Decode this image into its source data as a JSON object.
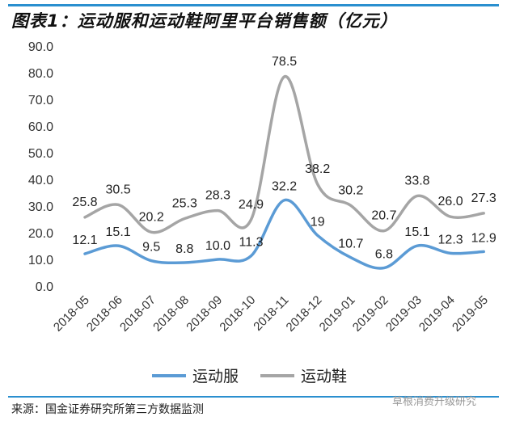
{
  "title": "图表1：运动服和运动鞋阿里平台销售额（亿元）",
  "source": "来源：国金证券研究所第三方数据监测",
  "watermark": "草根消费升级研究",
  "chart_data": {
    "type": "line",
    "title": "",
    "xlabel": "",
    "ylabel": "",
    "ylim": [
      0,
      90
    ],
    "yticks": [
      "0.0",
      "10.0",
      "20.0",
      "30.0",
      "40.0",
      "50.0",
      "60.0",
      "70.0",
      "80.0",
      "90.0"
    ],
    "grid": false,
    "smooth": true,
    "legend": "bottom",
    "categories": [
      "2018-05",
      "2018-06",
      "2018-07",
      "2018-08",
      "2018-09",
      "2018-10",
      "2018-11",
      "2018-12",
      "2019-01",
      "2019-02",
      "2019-03",
      "2019-04",
      "2019-05"
    ],
    "series": [
      {
        "name": "运动服",
        "color": "#5b9bd5",
        "values": [
          12.1,
          15.1,
          9.5,
          8.8,
          10.0,
          11.3,
          32.2,
          19,
          10.7,
          6.8,
          15.1,
          12.3,
          12.9
        ],
        "labels": [
          "12.1",
          "15.1",
          "9.5",
          "8.8",
          "10.0",
          "11.3",
          "32.2",
          "19",
          "10.7",
          "6.8",
          "15.1",
          "12.3",
          "12.9"
        ]
      },
      {
        "name": "运动鞋",
        "color": "#a5a5a5",
        "values": [
          25.8,
          30.5,
          20.2,
          25.3,
          28.3,
          24.9,
          78.5,
          38.2,
          30.2,
          20.7,
          33.8,
          26.0,
          27.3
        ],
        "labels": [
          "25.8",
          "30.5",
          "20.2",
          "25.3",
          "28.3",
          "24.9",
          "78.5",
          "38.2",
          "30.2",
          "20.7",
          "33.8",
          "26.0",
          "27.3"
        ]
      }
    ]
  }
}
